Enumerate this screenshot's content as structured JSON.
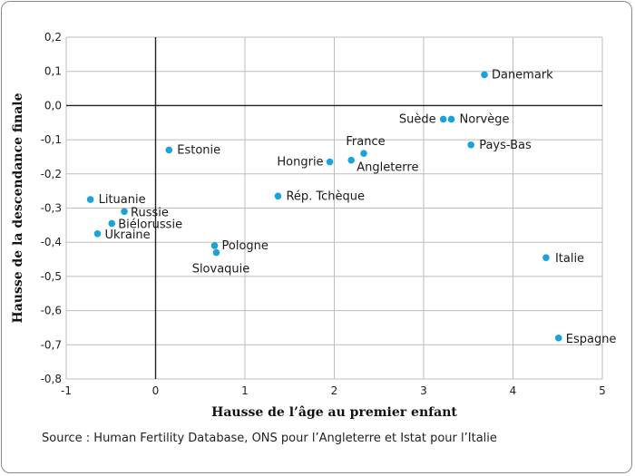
{
  "chart_data": {
    "type": "scatter",
    "xlabel": "Hausse de l’âge au premier enfant",
    "ylabel": "Hausse de la descendance finale",
    "xlim": [
      -1,
      5
    ],
    "ylim": [
      -0.8,
      0.2
    ],
    "x_ticks": [
      "-1",
      "0",
      "1",
      "2",
      "3",
      "4",
      "5"
    ],
    "y_ticks": [
      "0,2",
      "0,1",
      "0,0",
      "-0,1",
      "-0,2",
      "-0,3",
      "-0,4",
      "-0,5",
      "-0,6",
      "-0,7",
      "-0,8"
    ],
    "grid": true,
    "point_color": "#1aa3d9",
    "points": [
      {
        "label": "Danemark",
        "x": 3.68,
        "y": 0.09
      },
      {
        "label": "Suède",
        "x": 3.22,
        "y": -0.04
      },
      {
        "label": "Norvège",
        "x": 3.31,
        "y": -0.04
      },
      {
        "label": "Pays-Bas",
        "x": 3.53,
        "y": -0.115
      },
      {
        "label": "France",
        "x": 2.33,
        "y": -0.14
      },
      {
        "label": "Hongrie",
        "x": 1.95,
        "y": -0.165
      },
      {
        "label": "Angleterre",
        "x": 2.19,
        "y": -0.16
      },
      {
        "label": "Estonie",
        "x": 0.15,
        "y": -0.13
      },
      {
        "label": "Rép. Tchèque",
        "x": 1.37,
        "y": -0.265
      },
      {
        "label": "Lituanie",
        "x": -0.73,
        "y": -0.275
      },
      {
        "label": "Russie",
        "x": -0.35,
        "y": -0.31
      },
      {
        "label": "Biélorussie",
        "x": -0.49,
        "y": -0.345
      },
      {
        "label": "Ukraine",
        "x": -0.65,
        "y": -0.375
      },
      {
        "label": "Pologne",
        "x": 0.66,
        "y": -0.41
      },
      {
        "label": "Slovaquie",
        "x": 0.68,
        "y": -0.43
      },
      {
        "label": "Italie",
        "x": 4.37,
        "y": -0.445
      },
      {
        "label": "Espagne",
        "x": 4.51,
        "y": -0.68
      }
    ]
  },
  "source_text": "Source : Human Fertility Database, ONS pour l’Angleterre et Istat pour l’Italie"
}
